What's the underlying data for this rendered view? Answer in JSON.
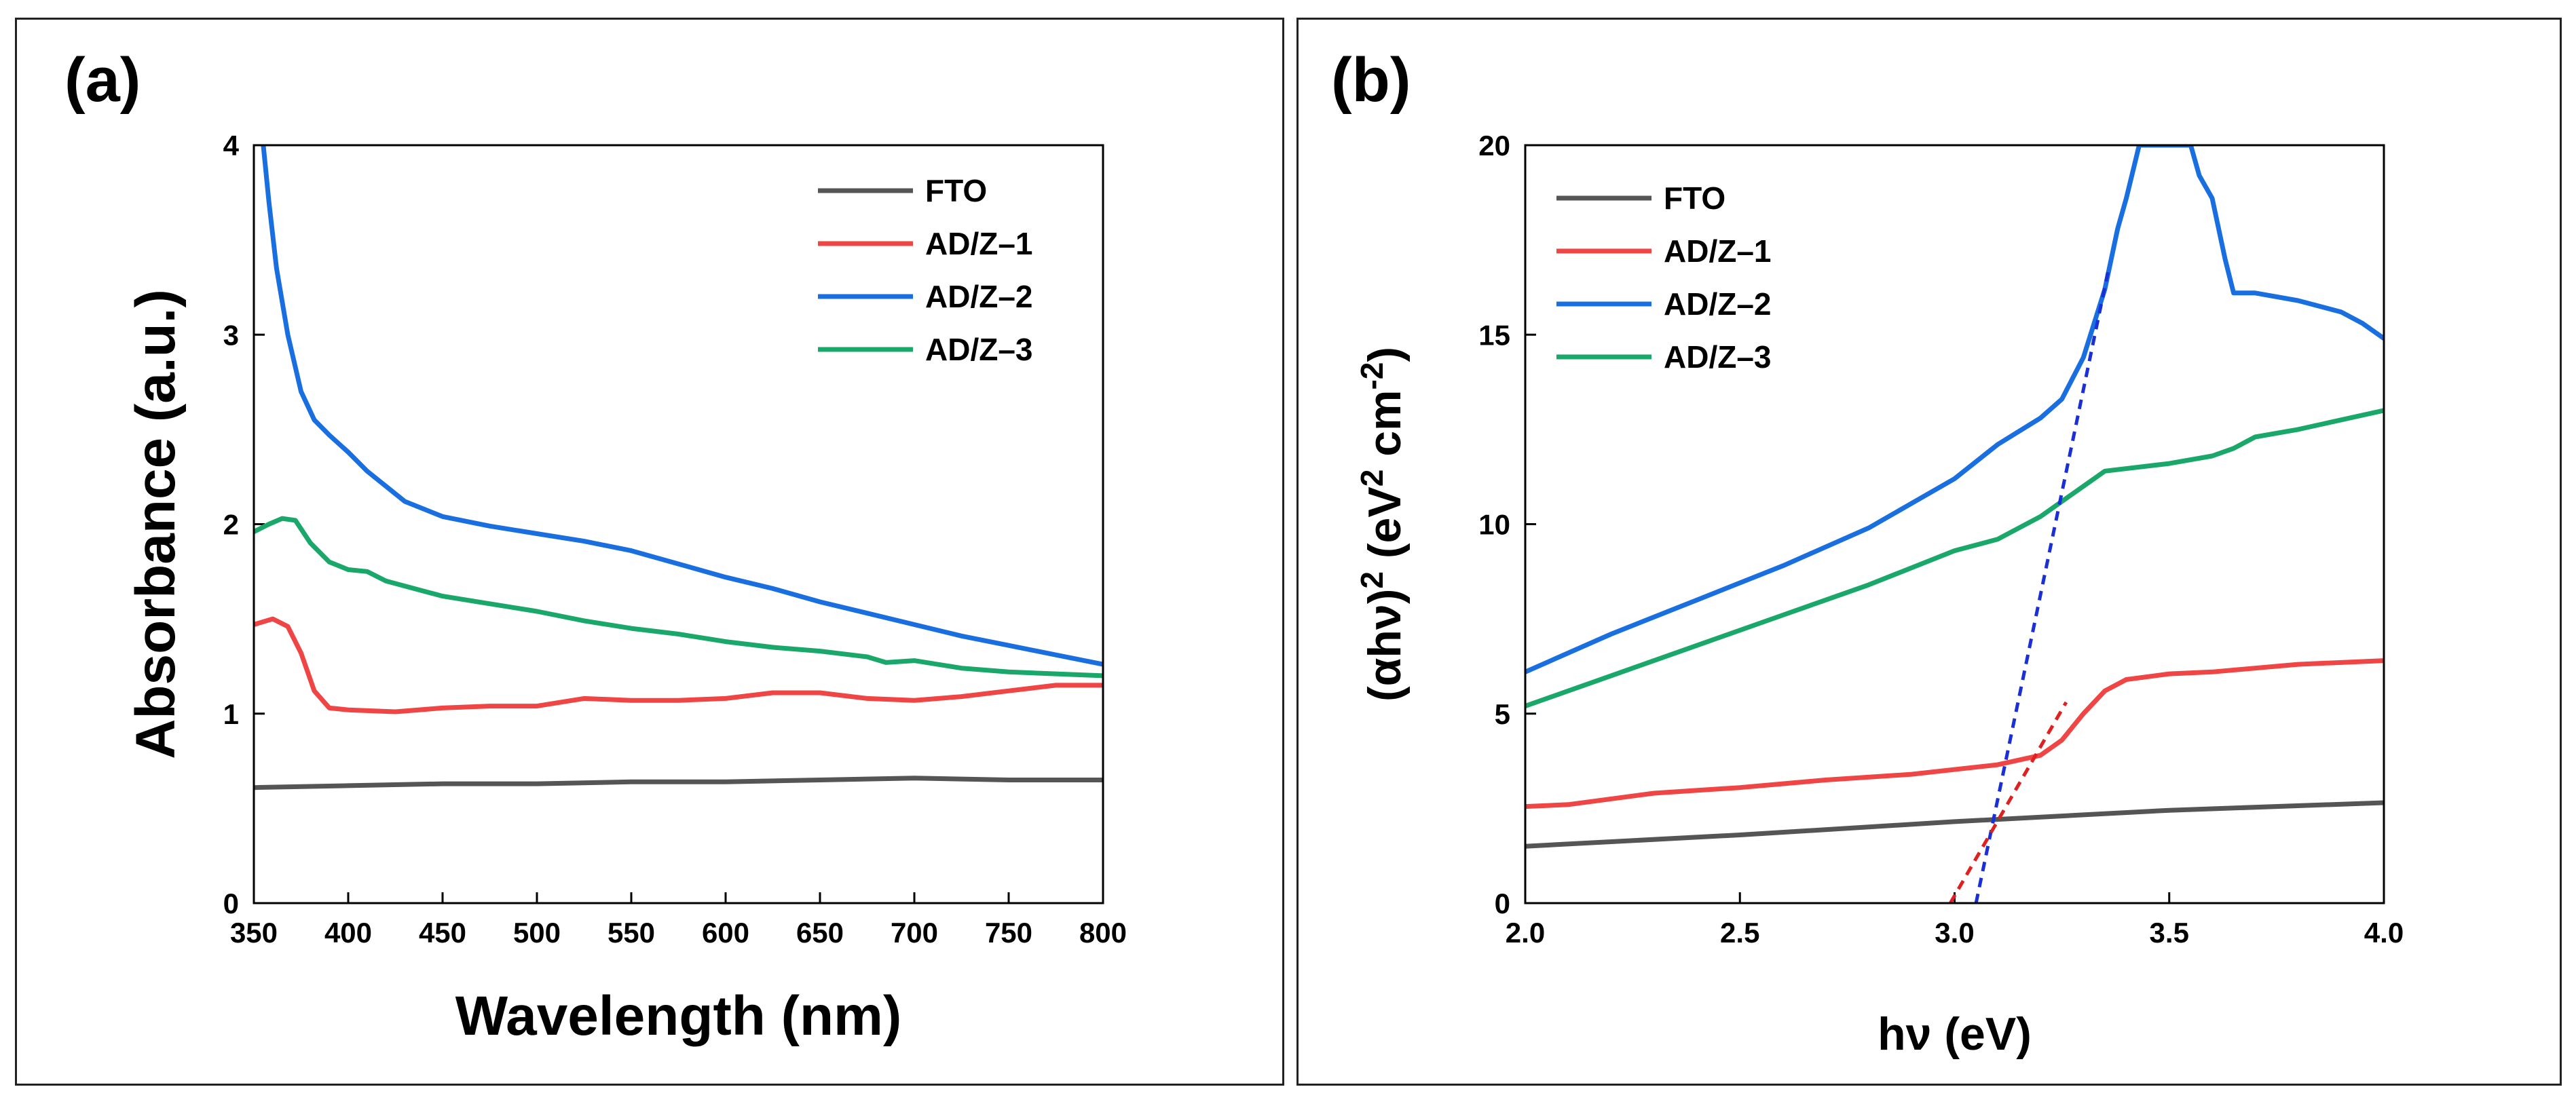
{
  "chart_data": [
    {
      "type": "line",
      "panel_label": "(a)",
      "xlabel": "Wavelength (nm)",
      "ylabel": "Absorbance (a.u.)",
      "xlim": [
        350,
        800
      ],
      "ylim": [
        0,
        4
      ],
      "xticks": [
        "350",
        "400",
        "450",
        "500",
        "550",
        "600",
        "650",
        "700",
        "750",
        "800"
      ],
      "yticks": [
        "0",
        "1",
        "2",
        "3",
        "4"
      ],
      "legend_position": "top-right",
      "series": [
        {
          "name": "FTO",
          "color": "#555555",
          "points": [
            [
              350,
              0.61
            ],
            [
              400,
              0.62
            ],
            [
              450,
              0.63
            ],
            [
              500,
              0.63
            ],
            [
              550,
              0.64
            ],
            [
              600,
              0.64
            ],
            [
              650,
              0.65
            ],
            [
              700,
              0.66
            ],
            [
              750,
              0.65
            ],
            [
              800,
              0.65
            ]
          ]
        },
        {
          "name": "AD/Z–1",
          "color": "#f04545",
          "points": [
            [
              350,
              1.47
            ],
            [
              360,
              1.5
            ],
            [
              368,
              1.46
            ],
            [
              375,
              1.32
            ],
            [
              382,
              1.12
            ],
            [
              390,
              1.03
            ],
            [
              400,
              1.02
            ],
            [
              425,
              1.01
            ],
            [
              450,
              1.03
            ],
            [
              475,
              1.04
            ],
            [
              500,
              1.04
            ],
            [
              525,
              1.08
            ],
            [
              550,
              1.07
            ],
            [
              575,
              1.07
            ],
            [
              600,
              1.08
            ],
            [
              625,
              1.11
            ],
            [
              650,
              1.11
            ],
            [
              675,
              1.08
            ],
            [
              700,
              1.07
            ],
            [
              725,
              1.09
            ],
            [
              750,
              1.12
            ],
            [
              775,
              1.15
            ],
            [
              800,
              1.15
            ]
          ]
        },
        {
          "name": "AD/Z–2",
          "color": "#1a6fe0",
          "points": [
            [
              355,
              4.0
            ],
            [
              358,
              3.7
            ],
            [
              362,
              3.35
            ],
            [
              368,
              3.0
            ],
            [
              375,
              2.7
            ],
            [
              382,
              2.55
            ],
            [
              390,
              2.47
            ],
            [
              400,
              2.38
            ],
            [
              410,
              2.28
            ],
            [
              420,
              2.2
            ],
            [
              430,
              2.12
            ],
            [
              450,
              2.04
            ],
            [
              475,
              1.99
            ],
            [
              500,
              1.95
            ],
            [
              525,
              1.91
            ],
            [
              550,
              1.86
            ],
            [
              575,
              1.79
            ],
            [
              600,
              1.72
            ],
            [
              625,
              1.66
            ],
            [
              650,
              1.59
            ],
            [
              675,
              1.53
            ],
            [
              700,
              1.47
            ],
            [
              725,
              1.41
            ],
            [
              750,
              1.36
            ],
            [
              775,
              1.31
            ],
            [
              800,
              1.26
            ]
          ]
        },
        {
          "name": "AD/Z–3",
          "color": "#1aa86a",
          "points": [
            [
              350,
              1.96
            ],
            [
              358,
              2.0
            ],
            [
              365,
              2.03
            ],
            [
              372,
              2.02
            ],
            [
              380,
              1.9
            ],
            [
              390,
              1.8
            ],
            [
              400,
              1.76
            ],
            [
              410,
              1.75
            ],
            [
              420,
              1.7
            ],
            [
              450,
              1.62
            ],
            [
              475,
              1.58
            ],
            [
              500,
              1.54
            ],
            [
              525,
              1.49
            ],
            [
              550,
              1.45
            ],
            [
              575,
              1.42
            ],
            [
              600,
              1.38
            ],
            [
              625,
              1.35
            ],
            [
              650,
              1.33
            ],
            [
              675,
              1.3
            ],
            [
              685,
              1.27
            ],
            [
              700,
              1.28
            ],
            [
              725,
              1.24
            ],
            [
              750,
              1.22
            ],
            [
              775,
              1.21
            ],
            [
              800,
              1.2
            ]
          ]
        }
      ]
    },
    {
      "type": "line",
      "panel_label": "(b)",
      "xlabel": "hν (eV)",
      "ylabel_parts": [
        "(αhν)",
        "2",
        " (eV",
        "2",
        " cm",
        "-2",
        ")"
      ],
      "xlim": [
        2.0,
        4.0
      ],
      "ylim": [
        0,
        20
      ],
      "xticks": [
        "2.0",
        "2.5",
        "3.0",
        "3.5",
        "4.0"
      ],
      "yticks": [
        "0",
        "5",
        "10",
        "15",
        "20"
      ],
      "legend_position": "top-left",
      "series": [
        {
          "name": "FTO",
          "color": "#555555",
          "points": [
            [
              2.0,
              1.5
            ],
            [
              2.5,
              1.8
            ],
            [
              3.0,
              2.15
            ],
            [
              3.5,
              2.45
            ],
            [
              4.0,
              2.65
            ]
          ]
        },
        {
          "name": "AD/Z–1",
          "color": "#f04545",
          "points": [
            [
              2.0,
              2.55
            ],
            [
              2.1,
              2.6
            ],
            [
              2.3,
              2.9
            ],
            [
              2.5,
              3.05
            ],
            [
              2.7,
              3.25
            ],
            [
              2.9,
              3.4
            ],
            [
              3.1,
              3.65
            ],
            [
              3.2,
              3.9
            ],
            [
              3.25,
              4.3
            ],
            [
              3.3,
              5.0
            ],
            [
              3.35,
              5.6
            ],
            [
              3.4,
              5.9
            ],
            [
              3.5,
              6.05
            ],
            [
              3.6,
              6.1
            ],
            [
              3.8,
              6.3
            ],
            [
              4.0,
              6.4
            ]
          ]
        },
        {
          "name": "AD/Z–2",
          "color": "#1a6fe0",
          "points": [
            [
              2.0,
              6.1
            ],
            [
              2.2,
              7.1
            ],
            [
              2.4,
              8.0
            ],
            [
              2.6,
              8.9
            ],
            [
              2.8,
              9.9
            ],
            [
              3.0,
              11.2
            ],
            [
              3.1,
              12.1
            ],
            [
              3.2,
              12.8
            ],
            [
              3.25,
              13.3
            ],
            [
              3.3,
              14.4
            ],
            [
              3.35,
              16.2
            ],
            [
              3.38,
              17.8
            ],
            [
              3.4,
              18.6
            ],
            [
              3.43,
              20.0
            ],
            [
              3.55,
              20.0
            ],
            [
              3.57,
              19.2
            ],
            [
              3.6,
              18.6
            ],
            [
              3.63,
              17.0
            ],
            [
              3.65,
              16.1
            ],
            [
              3.7,
              16.1
            ],
            [
              3.8,
              15.9
            ],
            [
              3.9,
              15.6
            ],
            [
              3.95,
              15.3
            ],
            [
              4.0,
              14.9
            ]
          ]
        },
        {
          "name": "AD/Z–3",
          "color": "#1aa86a",
          "points": [
            [
              2.0,
              5.2
            ],
            [
              2.2,
              6.0
            ],
            [
              2.4,
              6.8
            ],
            [
              2.6,
              7.6
            ],
            [
              2.8,
              8.4
            ],
            [
              3.0,
              9.3
            ],
            [
              3.1,
              9.6
            ],
            [
              3.2,
              10.2
            ],
            [
              3.3,
              11.0
            ],
            [
              3.35,
              11.4
            ],
            [
              3.5,
              11.6
            ],
            [
              3.6,
              11.8
            ],
            [
              3.65,
              12.0
            ],
            [
              3.7,
              12.3
            ],
            [
              3.8,
              12.5
            ],
            [
              4.0,
              13.0
            ]
          ]
        }
      ],
      "fit_lines": [
        {
          "name": "AD/Z–2 linear fit",
          "color": "#1a2fd6",
          "points": [
            [
              3.05,
              0
            ],
            [
              3.36,
              16.8
            ]
          ]
        },
        {
          "name": "AD/Z–1 linear fit",
          "color": "#e02020",
          "points": [
            [
              2.99,
              0
            ],
            [
              3.26,
              5.3
            ]
          ]
        }
      ]
    }
  ]
}
